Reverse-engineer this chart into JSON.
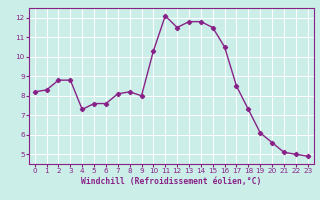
{
  "x": [
    0,
    1,
    2,
    3,
    4,
    5,
    6,
    7,
    8,
    9,
    10,
    11,
    12,
    13,
    14,
    15,
    16,
    17,
    18,
    19,
    20,
    21,
    22,
    23
  ],
  "y": [
    8.2,
    8.3,
    8.8,
    8.8,
    7.3,
    7.6,
    7.6,
    8.1,
    8.2,
    8.0,
    10.3,
    12.1,
    11.5,
    11.8,
    11.8,
    11.5,
    10.5,
    8.5,
    7.3,
    6.1,
    5.6,
    5.1,
    5.0,
    4.9
  ],
  "line_color": "#882288",
  "marker": "D",
  "marker_size": 2.2,
  "bg_color": "#cceee8",
  "grid_color": "#ffffff",
  "xlabel": "Windchill (Refroidissement éolien,°C)",
  "xlabel_color": "#882288",
  "tick_color": "#882288",
  "axis_color": "#882288",
  "ylim": [
    4.5,
    12.5
  ],
  "xlim": [
    -0.5,
    23.5
  ],
  "yticks": [
    5,
    6,
    7,
    8,
    9,
    10,
    11,
    12
  ],
  "xticks": [
    0,
    1,
    2,
    3,
    4,
    5,
    6,
    7,
    8,
    9,
    10,
    11,
    12,
    13,
    14,
    15,
    16,
    17,
    18,
    19,
    20,
    21,
    22,
    23
  ],
  "line_width": 1.0,
  "tick_fontsize": 5.2,
  "xlabel_fontsize": 5.8
}
